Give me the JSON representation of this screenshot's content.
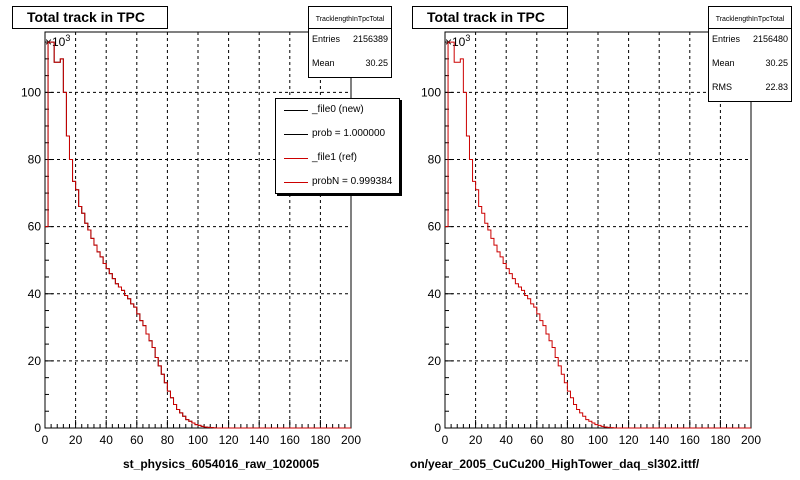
{
  "axis": {
    "exponent_label": "×10",
    "exponent_power": "3"
  },
  "chart_data": [
    {
      "type": "histogram",
      "title": "Total track in TPC",
      "xlabel": "st_physics_6054016_raw_1020005",
      "ylabel": "",
      "x_ticks": [
        "0",
        "20",
        "40",
        "60",
        "80",
        "100",
        "120",
        "140",
        "160",
        "180",
        "200"
      ],
      "y_ticks": [
        "0",
        "20",
        "40",
        "60",
        "80",
        "100"
      ],
      "y_scale_note": "×10^3",
      "xlim": [
        0,
        200
      ],
      "ylim": [
        0,
        118
      ],
      "grid": true,
      "bin_width": 2,
      "stats": {
        "name": "TracklengthInTpcTotal",
        "entries_label": "Entries",
        "entries": "2156389",
        "mean_label": "Mean",
        "mean": "30.25"
      },
      "legend": {
        "position": "top-right",
        "entries": [
          {
            "label": "_file0 (new)",
            "color": "#000000"
          },
          {
            "label": "prob = 1.000000",
            "color": "#000000"
          },
          {
            "label": "_file1 (ref)",
            "color": "#cc0000"
          },
          {
            "label": "probN = 0.999384",
            "color": "#cc0000"
          }
        ]
      },
      "series": [
        {
          "name": "_file0 (new)",
          "color": "#000000",
          "values": [
            60,
            115,
            115,
            109,
            109,
            110,
            100,
            87,
            80,
            73.5,
            71,
            66,
            64,
            61,
            59,
            56.5,
            54.5,
            52.5,
            51,
            49,
            47.5,
            46,
            44.5,
            43,
            42,
            41,
            39.5,
            38.5,
            37,
            36,
            34,
            32,
            30.5,
            28,
            26,
            24,
            21,
            18.5,
            16,
            13.5,
            11,
            9,
            7,
            5.5,
            4.5,
            3.5,
            2.5,
            2,
            1.5,
            1,
            0.8,
            0.5,
            0.3,
            0.2,
            0.1,
            0.05,
            0,
            0,
            0,
            0,
            0,
            0,
            0,
            0,
            0,
            0,
            0,
            0,
            0,
            0,
            0,
            0,
            0,
            0,
            0,
            0,
            0,
            0,
            0,
            0,
            0,
            0,
            0,
            0,
            0,
            0,
            0,
            0,
            0,
            0,
            0,
            0,
            0,
            0,
            0,
            0,
            0,
            0,
            0,
            0
          ]
        },
        {
          "name": "_file1 (ref)",
          "color": "#cc0000",
          "values": [
            60,
            115,
            115,
            109,
            109,
            110,
            100,
            87,
            80,
            73.5,
            71,
            66,
            64,
            61,
            59,
            56.5,
            54.5,
            52.5,
            51,
            49,
            47.5,
            46,
            44.5,
            43,
            42,
            41,
            39.5,
            38.5,
            37,
            36,
            34,
            32,
            30.5,
            28,
            26,
            24,
            21,
            18.5,
            16,
            13.5,
            11,
            9,
            7,
            5.5,
            4.5,
            3.5,
            2.5,
            2,
            1.5,
            1,
            0.8,
            0.5,
            0.3,
            0.2,
            0.1,
            0.05,
            0,
            0,
            0,
            0,
            0,
            0,
            0,
            0,
            0,
            0,
            0,
            0,
            0,
            0,
            0,
            0,
            0,
            0,
            0,
            0,
            0,
            0,
            0,
            0,
            0,
            0,
            0,
            0,
            0,
            0,
            0,
            0,
            0,
            0,
            0,
            0,
            0,
            0,
            0,
            0,
            0,
            0,
            0,
            0
          ]
        }
      ]
    },
    {
      "type": "histogram",
      "title": "Total track in TPC",
      "xlabel": "on/year_2005_CuCu200_HighTower_daq_sl302.ittf/",
      "ylabel": "",
      "x_ticks": [
        "0",
        "20",
        "40",
        "60",
        "80",
        "100",
        "120",
        "140",
        "160",
        "180",
        "200"
      ],
      "y_ticks": [
        "0",
        "20",
        "40",
        "60",
        "80",
        "100"
      ],
      "y_scale_note": "×10^3",
      "xlim": [
        0,
        200
      ],
      "ylim": [
        0,
        118
      ],
      "grid": true,
      "bin_width": 2,
      "stats": {
        "name": "TracklengthInTpcTotal",
        "entries_label": "Entries",
        "entries": "2156480",
        "mean_label": "Mean",
        "mean": "30.25",
        "rms_label": "RMS",
        "rms": "22.83"
      },
      "series": [
        {
          "name": "",
          "color": "#cc0000",
          "values": [
            60,
            115,
            115,
            109,
            109,
            110,
            100,
            87,
            80,
            73.5,
            71,
            66,
            64,
            61,
            59,
            56.5,
            54.5,
            52.5,
            51,
            49,
            47.5,
            46,
            44.5,
            43,
            42,
            41,
            39.5,
            38.5,
            37,
            36,
            34,
            32,
            30.5,
            28,
            26,
            24,
            21,
            18.5,
            16,
            13.5,
            11,
            9,
            7,
            5.5,
            4.5,
            3.5,
            2.5,
            2,
            1.5,
            1,
            0.8,
            0.5,
            0.3,
            0.2,
            0.1,
            0.05,
            0,
            0,
            0,
            0,
            0,
            0,
            0,
            0,
            0,
            0,
            0,
            0,
            0,
            0,
            0,
            0,
            0,
            0,
            0,
            0,
            0,
            0,
            0,
            0,
            0,
            0,
            0,
            0,
            0,
            0,
            0,
            0,
            0,
            0,
            0,
            0,
            0,
            0,
            0,
            0,
            0,
            0,
            0,
            0
          ]
        }
      ]
    }
  ]
}
